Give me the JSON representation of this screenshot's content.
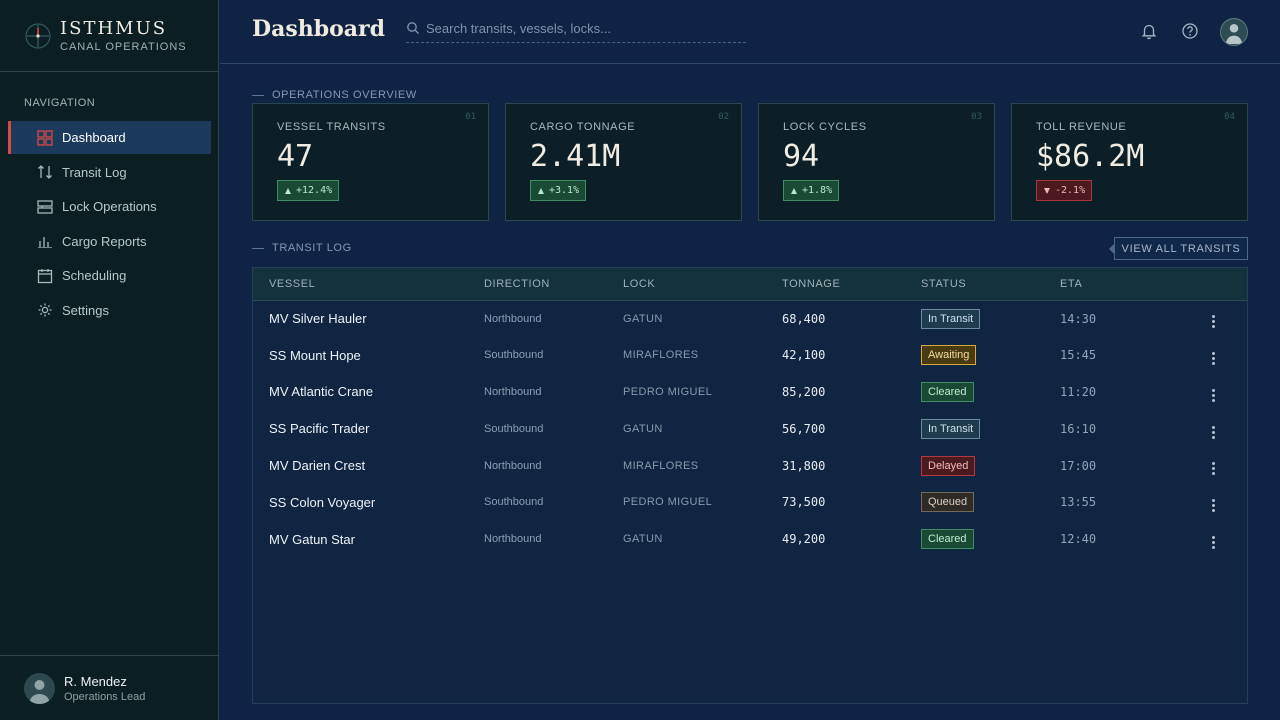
{
  "brand": {
    "name": "ISTHMUS",
    "subtitle": "CANAL OPERATIONS"
  },
  "nav": {
    "heading": "NAVIGATION",
    "items": [
      {
        "label": "Dashboard",
        "icon": "grid-icon",
        "active": true
      },
      {
        "label": "Transit Log",
        "icon": "arrows-up-down-icon",
        "active": false
      },
      {
        "label": "Lock Operations",
        "icon": "lock-chambers-icon",
        "active": false
      },
      {
        "label": "Cargo Reports",
        "icon": "bar-chart-icon",
        "active": false
      },
      {
        "label": "Scheduling",
        "icon": "calendar-icon",
        "active": false
      },
      {
        "label": "Settings",
        "icon": "gear-icon",
        "active": false
      }
    ]
  },
  "user": {
    "name": "R. Mendez",
    "role": "Operations Lead"
  },
  "header": {
    "title": "Dashboard",
    "search_placeholder": "Search transits, vessels, locks...",
    "icons": [
      "bell-icon",
      "help-icon",
      "user-avatar"
    ]
  },
  "overview": {
    "label": "OPERATIONS OVERVIEW",
    "kpis": [
      {
        "num": "01",
        "label": "VESSEL TRANSITS",
        "value": "47",
        "delta": "+12.4%",
        "trend": "up"
      },
      {
        "num": "02",
        "label": "CARGO TONNAGE",
        "value": "2.41M",
        "delta": "+3.1%",
        "trend": "up"
      },
      {
        "num": "03",
        "label": "LOCK CYCLES",
        "value": "94",
        "delta": "+1.8%",
        "trend": "up"
      },
      {
        "num": "04",
        "label": "TOLL REVENUE",
        "value": "$86.2M",
        "delta": "-2.1%",
        "trend": "down"
      }
    ]
  },
  "transit_log": {
    "label": "TRANSIT LOG",
    "view_all": "VIEW ALL TRANSITS",
    "columns": [
      "VESSEL",
      "DIRECTION",
      "LOCK",
      "TONNAGE",
      "STATUS",
      "ETA"
    ],
    "rows": [
      {
        "vessel": "MV Silver Hauler",
        "direction": "Northbound",
        "lock": "GATUN",
        "tonnage": "68,400",
        "status": "In Transit",
        "eta": "14:30"
      },
      {
        "vessel": "SS Mount Hope",
        "direction": "Southbound",
        "lock": "MIRAFLORES",
        "tonnage": "42,100",
        "status": "Awaiting",
        "eta": "15:45"
      },
      {
        "vessel": "MV Atlantic Crane",
        "direction": "Northbound",
        "lock": "PEDRO MIGUEL",
        "tonnage": "85,200",
        "status": "Cleared",
        "eta": "11:20"
      },
      {
        "vessel": "SS Pacific Trader",
        "direction": "Southbound",
        "lock": "GATUN",
        "tonnage": "56,700",
        "status": "In Transit",
        "eta": "16:10"
      },
      {
        "vessel": "MV Darien Crest",
        "direction": "Northbound",
        "lock": "MIRAFLORES",
        "tonnage": "31,800",
        "status": "Delayed",
        "eta": "17:00"
      },
      {
        "vessel": "SS Colon Voyager",
        "direction": "Southbound",
        "lock": "PEDRO MIGUEL",
        "tonnage": "73,500",
        "status": "Queued",
        "eta": "13:55"
      },
      {
        "vessel": "MV Gatun Star",
        "direction": "Northbound",
        "lock": "GATUN",
        "tonnage": "49,200",
        "status": "Cleared",
        "eta": "12:40"
      }
    ]
  },
  "colors": {
    "accent_active": "#d54b42",
    "up": "#3d8f62",
    "down": "#b23a3f",
    "awaiting": "#d8a93c"
  }
}
